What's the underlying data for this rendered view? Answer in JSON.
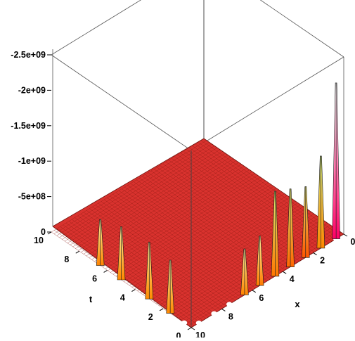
{
  "chart_data": {
    "type": "surface3d",
    "title": "",
    "xlabel": "x",
    "ylabel": "t",
    "zlabel": "",
    "x_ticks": [
      "0",
      "2",
      "4",
      "6",
      "8",
      "10"
    ],
    "t_ticks": [
      "0",
      "2",
      "4",
      "6",
      "8",
      "10"
    ],
    "z_ticks": [
      "0",
      "-5e+08",
      "-1e+09",
      "-1.5e+09",
      "-2e+09",
      "-2.5e+09"
    ],
    "z_tick_values": [
      0,
      -500000000,
      -1000000000,
      -1500000000,
      -2000000000,
      -2500000000
    ],
    "x_range": [
      0,
      10
    ],
    "t_range": [
      0,
      10
    ],
    "z_range": [
      0,
      -2500000000
    ],
    "surface_level": 0,
    "spikes": [
      {
        "x": 0.5,
        "t": 0,
        "z": -2200000000,
        "colors": [
          "#ff0066",
          "#ffffff"
        ]
      },
      {
        "x": 1.5,
        "t": 0,
        "z": -1300000000,
        "colors": [
          "#ff8800",
          "#cde87a"
        ]
      },
      {
        "x": 2.5,
        "t": 0,
        "z": -1000000000,
        "colors": [
          "#ff5500",
          "#eeea6a"
        ]
      },
      {
        "x": 3.5,
        "t": 0,
        "z": -1100000000,
        "colors": [
          "#ff6600",
          "#e6ec6e"
        ]
      },
      {
        "x": 4.5,
        "t": 0,
        "z": -1200000000,
        "colors": [
          "#ff7700",
          "#d8ee74"
        ]
      },
      {
        "x": 5.5,
        "t": 0,
        "z": -700000000,
        "colors": [
          "#ff7a00",
          "#fff5a0"
        ]
      },
      {
        "x": 6.5,
        "t": 0,
        "z": -650000000,
        "colors": [
          "#ff8400",
          "#fff5a0"
        ]
      },
      {
        "x": 10,
        "t": 1.5,
        "z": -750000000,
        "colors": [
          "#ff8800",
          "#fff5a0"
        ]
      },
      {
        "x": 10,
        "t": 3,
        "z": -800000000,
        "colors": [
          "#ff8a00",
          "#fff5a0"
        ]
      },
      {
        "x": 10,
        "t": 5,
        "z": -750000000,
        "colors": [
          "#ff8800",
          "#fff5a0"
        ]
      },
      {
        "x": 10,
        "t": 6.5,
        "z": -650000000,
        "colors": [
          "#ff8400",
          "#fff5a0"
        ]
      }
    ],
    "holes": [
      {
        "x": 0.5,
        "t": 0
      },
      {
        "x": 7.5,
        "t": 0
      },
      {
        "x": 8.5,
        "t": 0
      },
      {
        "x": 9.5,
        "t": 0
      },
      {
        "x": 10,
        "t": 0.5
      }
    ],
    "surface_color": "#d9322e",
    "grid_line_color": "#8a1a12",
    "background": "#ffffff",
    "grid": true,
    "box": true
  }
}
